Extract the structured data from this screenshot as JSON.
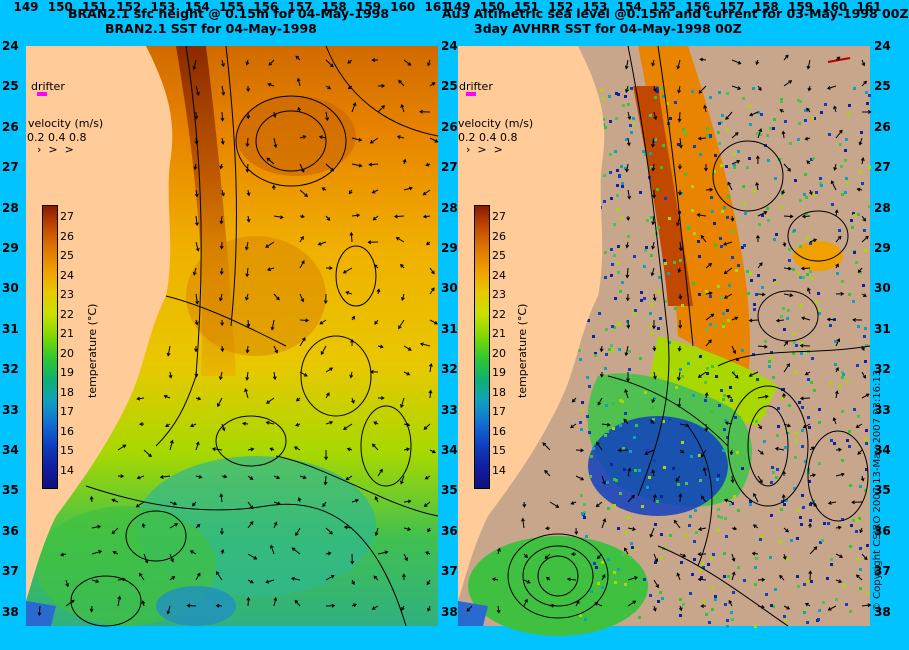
{
  "titles": {
    "left_line1": "BRAN2.1 sfc height @ 0.15m for 04-May-1998",
    "left_line2": "BRAN2.1 SST for 04-May-1998",
    "right_line1": "Au3 Altimetric sea level  @0.15m and current for 03-May-1998 00Z",
    "right_line2": "3day AVHRR SST for 04-May-1998 00Z"
  },
  "overlay": {
    "drifter_label": "drifter",
    "velocity_label": "velocity (m/s)",
    "velocity_scale": "0.2 0.4 0.8",
    "colorbar_title": "temperature (°C)",
    "copyright": "© Copyright CSIRO 2007  13-May-2007 23:16:13"
  },
  "axes": {
    "lat_labels": [
      "24",
      "25",
      "26",
      "27",
      "28",
      "29",
      "30",
      "31",
      "32",
      "33",
      "34",
      "35",
      "36",
      "37",
      "38"
    ],
    "lon_labels": [
      "149",
      "150",
      "151",
      "152",
      "153",
      "154",
      "155",
      "156",
      "157",
      "158",
      "159",
      "160",
      "161"
    ],
    "lon_labels_right": [
      "149",
      "150",
      "151",
      "152",
      "153",
      "154",
      "155",
      "156",
      "157",
      "158",
      "159",
      "160",
      "161"
    ]
  },
  "colorbar": {
    "ticks": [
      "27",
      "26",
      "25",
      "24",
      "23",
      "22",
      "21",
      "20",
      "19",
      "18",
      "17",
      "16",
      "15",
      "14"
    ],
    "colors": [
      "#8b1a00",
      "#c44a00",
      "#e07800",
      "#f0a000",
      "#e8c800",
      "#c8e000",
      "#80d800",
      "#30c830",
      "#10b070",
      "#10a0c0",
      "#1070d0",
      "#1040c0",
      "#1020a0",
      "#101080"
    ]
  },
  "colors": {
    "background": "#00c3ff",
    "land": "#ffcc99",
    "cloud": "#c8a68c",
    "drifter": "#ff00ff"
  }
}
